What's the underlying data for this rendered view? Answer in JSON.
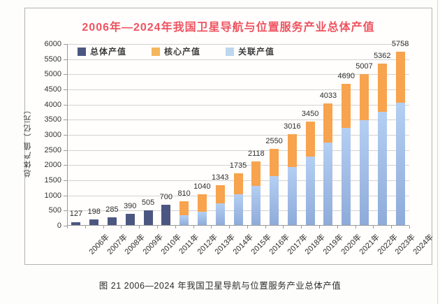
{
  "page": {
    "caption": "图 21  2006—2024 年我国卫星导航与位置服务产业总体产值"
  },
  "chart": {
    "title": "2006年—2024年我国卫星导航与位置服务产业总体产值",
    "y_axis_title": "总体产值（亿元）",
    "legend": [
      {
        "id": "total",
        "label": "总体产值",
        "swatch_color": "#4c5781"
      },
      {
        "id": "core",
        "label": "核心产值",
        "swatch_color": "#f5b75b"
      },
      {
        "id": "associated",
        "label": "关联产值",
        "swatch_color": "#bdd7ee"
      }
    ]
  },
  "chart_data": {
    "type": "bar",
    "stacked": true,
    "title": "2006年—2024年我国卫星导航与位置服务产业总体产值",
    "xlabel": "",
    "ylabel": "总体产值（亿元）",
    "ylim": [
      0,
      6000
    ],
    "ytick_step": 500,
    "grid": true,
    "legend_position": "top-left-inside",
    "categories": [
      "2006年",
      "2007年",
      "2008年",
      "2009年",
      "2010年",
      "2011年",
      "2012年",
      "2013年",
      "2014年",
      "2015年",
      "2016年",
      "2017年",
      "2018年",
      "2019年",
      "2020年",
      "2021年",
      "2022年",
      "2023年",
      "2024年"
    ],
    "totals": [
      127,
      198,
      285,
      390,
      505,
      700,
      810,
      1040,
      1343,
      1735,
      2118,
      2550,
      3016,
      3450,
      4033,
      4690,
      5007,
      5362,
      5758
    ],
    "series": [
      {
        "name": "总体产值",
        "color": "#4c5781",
        "values": [
          127,
          198,
          285,
          390,
          505,
          700,
          null,
          null,
          null,
          null,
          null,
          null,
          null,
          null,
          null,
          null,
          null,
          null,
          null
        ]
      },
      {
        "name": "关联产值",
        "color": "#a3c1e8",
        "values": [
          null,
          null,
          null,
          null,
          null,
          null,
          350,
          470,
          730,
          1040,
          1310,
          1648,
          1947,
          2284,
          2738,
          3236,
          3480,
          3751,
          4059
        ]
      },
      {
        "name": "核心产值",
        "color": "#f8a34d",
        "values": [
          null,
          null,
          null,
          null,
          null,
          null,
          460,
          570,
          613,
          695,
          808,
          902,
          1069,
          1166,
          1295,
          1454,
          1527,
          1611,
          1699
        ]
      }
    ],
    "colors": {
      "total_bar": "#4c5781",
      "core_bar": "#f8a34d",
      "associated_bar_top": "#b4cff3",
      "associated_bar_bottom": "#8eabd9",
      "title_text": "#ef5360",
      "gridline": "#d2d2d0",
      "axis_line": "#9a9a98",
      "label_text": "#2e2e2e"
    }
  }
}
